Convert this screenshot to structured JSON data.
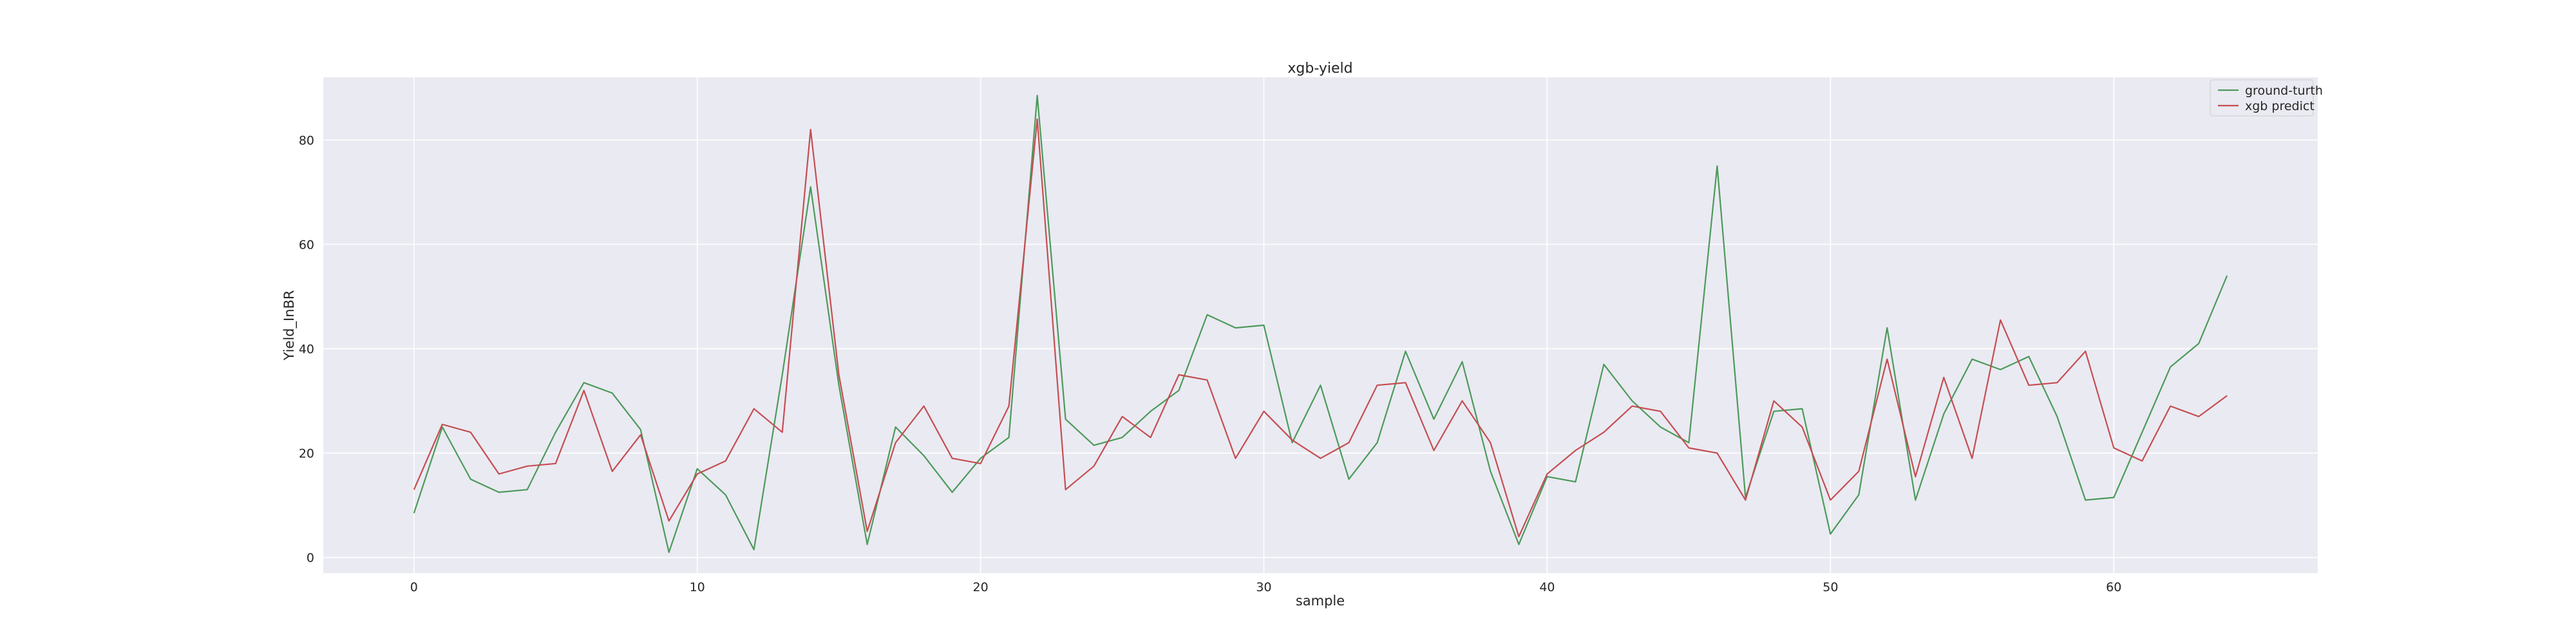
{
  "chart_data": {
    "type": "line",
    "title": "xgb-yield",
    "xlabel": "sample",
    "ylabel": "Yield_InBR",
    "xlim": [
      -3.2,
      67.2
    ],
    "ylim": [
      -3,
      92
    ],
    "x_ticks": [
      0,
      10,
      20,
      30,
      40,
      50,
      60
    ],
    "y_ticks": [
      0,
      20,
      40,
      60,
      80
    ],
    "grid": true,
    "legend_position": "top-right",
    "x": [
      0,
      1,
      2,
      3,
      4,
      5,
      6,
      7,
      8,
      9,
      10,
      11,
      12,
      13,
      14,
      15,
      16,
      17,
      18,
      19,
      20,
      21,
      22,
      23,
      24,
      25,
      26,
      27,
      28,
      29,
      30,
      31,
      32,
      33,
      34,
      35,
      36,
      37,
      38,
      39,
      40,
      41,
      42,
      43,
      44,
      45,
      46,
      47,
      48,
      49,
      50,
      51,
      52,
      53,
      54,
      55,
      56,
      57,
      58,
      59,
      60,
      61,
      62,
      63,
      64
    ],
    "series": [
      {
        "name": "ground-turth",
        "color": "#4c9a5a",
        "values": [
          8.5,
          25,
          15,
          12.5,
          13,
          24,
          33.5,
          31.5,
          24.5,
          1,
          17,
          12,
          1.5,
          35,
          71,
          33,
          2.5,
          25,
          19.5,
          12.5,
          19,
          23,
          88.5,
          26.5,
          21.5,
          23,
          28,
          32,
          46.5,
          44,
          44.5,
          22,
          33,
          15,
          22,
          39.5,
          26.5,
          37.5,
          16.5,
          2.5,
          15.5,
          14.5,
          37,
          30,
          25,
          22,
          75,
          11.5,
          28,
          28.5,
          4.5,
          12,
          44,
          11,
          27.5,
          38,
          36,
          38.5,
          27,
          11,
          11.5,
          24,
          36.5,
          41,
          54
        ]
      },
      {
        "name": "xgb predict",
        "color": "#c44e52",
        "values": [
          13,
          25.5,
          24,
          16,
          17.5,
          18,
          32,
          16.5,
          23.5,
          7,
          16,
          18.5,
          28.5,
          24,
          82,
          35,
          5,
          22,
          29,
          19,
          18,
          29,
          84,
          13,
          17.5,
          27,
          23,
          35,
          34,
          19,
          28,
          22.5,
          19,
          22,
          33,
          33.5,
          20.5,
          30,
          22,
          4,
          16,
          20.5,
          24,
          29,
          28,
          21,
          20,
          11,
          30,
          25,
          11,
          16.5,
          38,
          15.5,
          34.5,
          19,
          45.5,
          33,
          33.5,
          39.5,
          21,
          18.5,
          29,
          27,
          31
        ]
      }
    ]
  }
}
